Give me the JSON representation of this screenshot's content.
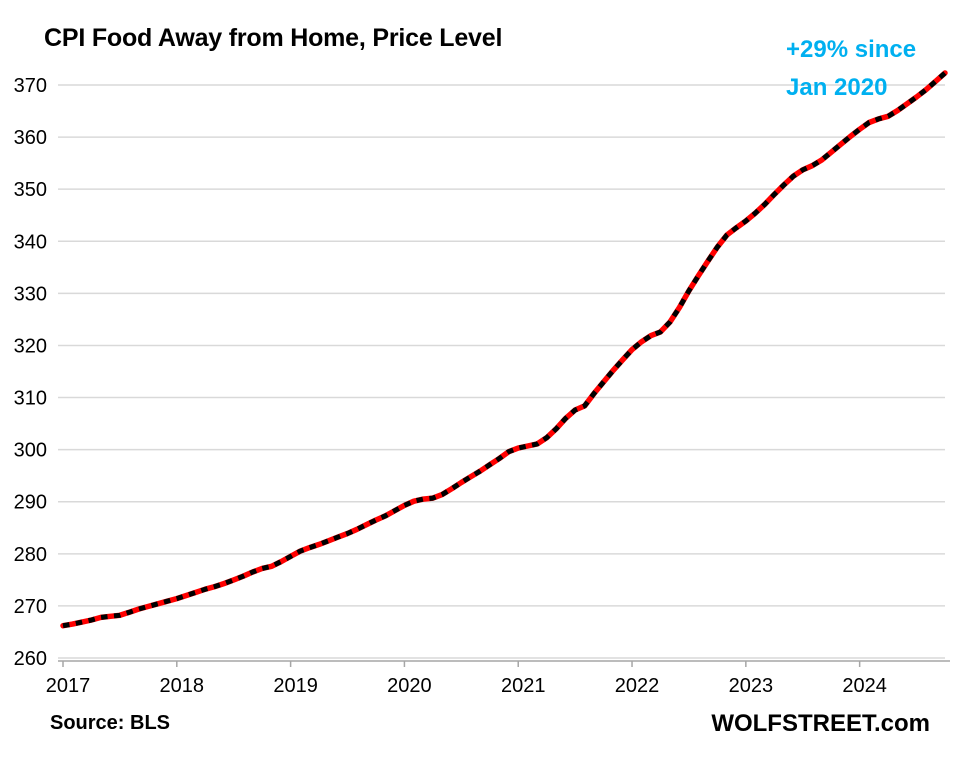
{
  "chart_data": {
    "type": "line",
    "title": "CPI Food Away from Home, Price Level",
    "series_name": "CPI Food Away from Home price level index",
    "frequency": "monthly",
    "x_start": "2017-01",
    "x_end": "2024-10",
    "x_tick_labels": [
      "2017",
      "2018",
      "2019",
      "2020",
      "2021",
      "2022",
      "2023",
      "2024"
    ],
    "y_ticks": [
      260,
      270,
      280,
      290,
      300,
      310,
      320,
      330,
      340,
      350,
      360,
      370
    ],
    "ylim": [
      260,
      370
    ],
    "values": [
      266.2,
      266.5,
      266.9,
      267.3,
      267.8,
      268.0,
      268.2,
      268.8,
      269.4,
      269.9,
      270.4,
      270.9,
      271.4,
      272.0,
      272.6,
      273.2,
      273.7,
      274.3,
      275.0,
      275.7,
      276.5,
      277.2,
      277.6,
      278.5,
      279.5,
      280.5,
      281.2,
      281.8,
      282.5,
      283.2,
      283.9,
      284.7,
      285.6,
      286.5,
      287.3,
      288.3,
      289.3,
      290.1,
      290.5,
      290.7,
      291.4,
      292.5,
      293.7,
      294.8,
      295.9,
      297.1,
      298.3,
      299.6,
      300.3,
      300.7,
      301.1,
      302.3,
      304.0,
      306.0,
      307.6,
      308.4,
      310.8,
      313.0,
      315.2,
      317.2,
      319.2,
      320.7,
      321.9,
      322.6,
      324.5,
      327.3,
      330.5,
      333.4,
      336.2,
      338.9,
      341.2,
      342.6,
      343.9,
      345.4,
      347.1,
      349.0,
      350.8,
      352.5,
      353.7,
      354.5,
      355.6,
      357.1,
      358.6,
      360.1,
      361.5,
      362.8,
      363.5,
      364.0,
      365.1,
      366.4,
      367.7,
      369.1,
      370.7,
      372.3
    ],
    "annotation": {
      "line1": "+29% since",
      "line2": "Jan 2020",
      "color": "#00B0F0"
    },
    "line_color": "#FF0000",
    "dash_color": "#000000",
    "gridline_color": "#D9D9D9",
    "axis_color": "#A6A6A6",
    "legend": "none",
    "grid": "horizontal"
  },
  "footer": {
    "source": "Source: BLS",
    "branding": "WOLFSTREET.com"
  }
}
